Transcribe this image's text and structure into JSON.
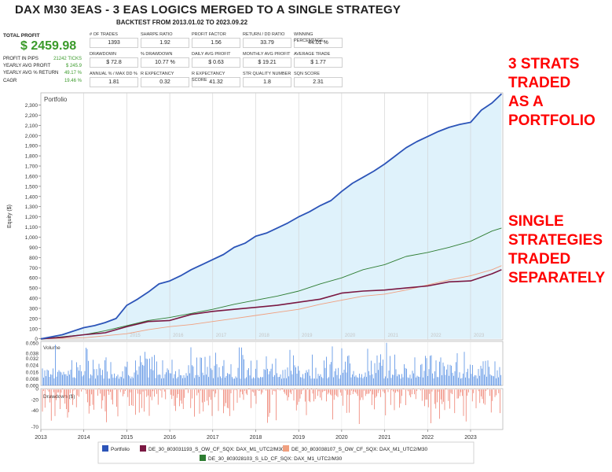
{
  "header": {
    "title": "DAX M30 3EAS - 3 EAS LOGICS MERGED TO A SINGLE STRATEGY",
    "subtitle": "BACKTEST FROM 2013.01.02 TO 2023.09.22"
  },
  "summary": {
    "total_profit_label": "TOTAL PROFIT",
    "total_profit_value": "$ 2459.98",
    "rows": [
      {
        "label": "PROFIT IN PIPS",
        "value": "21242 TICKS"
      },
      {
        "label": "YEARLY AVG PROFIT",
        "value": "$ 245.9"
      },
      {
        "label": "YEARLY AVG % RETURN",
        "value": "49.17 %"
      },
      {
        "label": "CAGR",
        "value": "19.46 %"
      }
    ]
  },
  "metrics": [
    {
      "label": "# OF TRADES",
      "value": "1393"
    },
    {
      "label": "SHARPE RATIO",
      "value": "1.92"
    },
    {
      "label": "PROFIT FACTOR",
      "value": "1.56"
    },
    {
      "label": "RETURN / DD RATIO",
      "value": "33.79"
    },
    {
      "label": "WINNING PERCENTAGE",
      "value": "44.01 %"
    },
    {
      "label": "DRAWDOWN",
      "value": "$ 72.8"
    },
    {
      "label": "% DRAWDOWN",
      "value": "10.77 %"
    },
    {
      "label": "DAILY AVG PROFIT",
      "value": "$ 0.63"
    },
    {
      "label": "MONTHLY AVG PROFIT",
      "value": "$ 19.21"
    },
    {
      "label": "AVERAGE TRADE",
      "value": "$ 1.77"
    },
    {
      "label": "ANNUAL % / MAX DD %",
      "value": "1.81"
    },
    {
      "label": "R EXPECTANCY",
      "value": "0.32"
    },
    {
      "label": "R EXPECTANCY SCORE",
      "value": "41.32"
    },
    {
      "label": "STR QUALITY NUMBER",
      "value": "1.8"
    },
    {
      "label": "SQN SCORE",
      "value": "2.31"
    }
  ],
  "annotations": {
    "top": [
      "3 STRATS",
      "TRADED",
      "AS A",
      "PORTFOLIO"
    ],
    "bottom": [
      "SINGLE",
      "STRATEGIES",
      "TRADED",
      "SEPARATELY"
    ],
    "color": "#ff0000"
  },
  "chart_data": {
    "type": "line",
    "panel_title": "Portfolio",
    "ylabel": "Equity ($)",
    "ylim": [
      -10,
      2420
    ],
    "yticks": [
      "0",
      "100",
      "200",
      "300",
      "400",
      "500",
      "600",
      "700",
      "800",
      "900",
      "1,000",
      "1,100",
      "1,200",
      "1,300",
      "1,400",
      "1,500",
      "1,600",
      "1,700",
      "1,800",
      "1,900",
      "2,000",
      "2,100",
      "2,200",
      "2,300"
    ],
    "xticks": [
      "2013",
      "2014",
      "2015",
      "2016",
      "2017",
      "2018",
      "2019",
      "2020",
      "2021",
      "2022",
      "2023"
    ],
    "xlim": [
      2013.0,
      2023.75
    ],
    "watermark_years": [
      "2015",
      "2016",
      "2017",
      "2018",
      "2019",
      "2020",
      "2021",
      "2022",
      "2023"
    ],
    "series": [
      {
        "name": "Portfolio",
        "color": "#2c54b8",
        "fill": "#dff2fb",
        "x": [
          2013.0,
          2013.25,
          2013.5,
          2013.75,
          2014.0,
          2014.25,
          2014.5,
          2014.75,
          2015.0,
          2015.25,
          2015.5,
          2015.75,
          2016.0,
          2016.25,
          2016.5,
          2016.75,
          2017.0,
          2017.25,
          2017.5,
          2017.75,
          2018.0,
          2018.25,
          2018.5,
          2018.75,
          2019.0,
          2019.25,
          2019.5,
          2019.75,
          2020.0,
          2020.25,
          2020.5,
          2020.75,
          2021.0,
          2021.25,
          2021.5,
          2021.75,
          2022.0,
          2022.25,
          2022.5,
          2022.75,
          2023.0,
          2023.25,
          2023.5,
          2023.72
        ],
        "y": [
          0,
          20,
          40,
          75,
          110,
          130,
          160,
          200,
          330,
          390,
          460,
          540,
          570,
          620,
          680,
          730,
          780,
          830,
          900,
          940,
          1010,
          1040,
          1090,
          1140,
          1200,
          1250,
          1310,
          1360,
          1450,
          1530,
          1590,
          1650,
          1720,
          1800,
          1880,
          1940,
          1990,
          2040,
          2080,
          2110,
          2130,
          2250,
          2320,
          2410
        ]
      },
      {
        "name": "DE_30_803031193_S_OW_CF_SQX: DAX_M1_UTC2/M30",
        "color": "#7a1842",
        "x": [
          2013.0,
          2013.5,
          2014.0,
          2014.5,
          2015.0,
          2015.5,
          2016.0,
          2016.5,
          2017.0,
          2017.5,
          2018.0,
          2018.5,
          2019.0,
          2019.5,
          2020.0,
          2020.5,
          2021.0,
          2021.5,
          2022.0,
          2022.5,
          2023.0,
          2023.5,
          2023.72
        ],
        "y": [
          0,
          15,
          40,
          60,
          120,
          170,
          180,
          240,
          270,
          290,
          310,
          330,
          360,
          390,
          450,
          470,
          480,
          500,
          520,
          560,
          570,
          640,
          680
        ]
      },
      {
        "name": "DE_30_803038107_S_OW_CF_SQX: DAX_M1_UTC2/M30",
        "color": "#f0a080",
        "x": [
          2013.0,
          2013.5,
          2014.0,
          2014.5,
          2015.0,
          2015.5,
          2016.0,
          2016.5,
          2017.0,
          2017.5,
          2018.0,
          2018.5,
          2019.0,
          2019.5,
          2020.0,
          2020.5,
          2021.0,
          2021.5,
          2022.0,
          2022.5,
          2023.0,
          2023.5,
          2023.72
        ],
        "y": [
          0,
          5,
          10,
          30,
          50,
          90,
          120,
          140,
          170,
          200,
          230,
          260,
          290,
          340,
          380,
          420,
          440,
          480,
          530,
          580,
          620,
          680,
          720
        ]
      },
      {
        "name": "DE_30_803028103_S_LD_CF_SQX: DAX_M1_UTC2/M30",
        "color": "#2e7d32",
        "x": [
          2013.0,
          2013.5,
          2014.0,
          2014.5,
          2015.0,
          2015.5,
          2016.0,
          2016.5,
          2017.0,
          2017.5,
          2018.0,
          2018.5,
          2019.0,
          2019.5,
          2020.0,
          2020.5,
          2021.0,
          2021.5,
          2022.0,
          2022.5,
          2023.0,
          2023.5,
          2023.72
        ],
        "y": [
          0,
          20,
          40,
          80,
          130,
          180,
          210,
          250,
          290,
          340,
          380,
          420,
          470,
          540,
          600,
          680,
          730,
          810,
          850,
          900,
          960,
          1060,
          1090
        ]
      }
    ],
    "volume": {
      "label": "Volume",
      "yticks": [
        "0.000",
        "0.008",
        "0.016",
        "0.024",
        "0.032",
        "0.038",
        "0.050"
      ],
      "ylim": [
        0,
        0.052
      ],
      "color": "#3d7ee0"
    },
    "drawdown": {
      "label": "Drawdown ($)",
      "yticks": [
        "0",
        "-20",
        "-40",
        "-70"
      ],
      "ylim": [
        -75,
        0
      ],
      "color": "#e8553f"
    }
  }
}
